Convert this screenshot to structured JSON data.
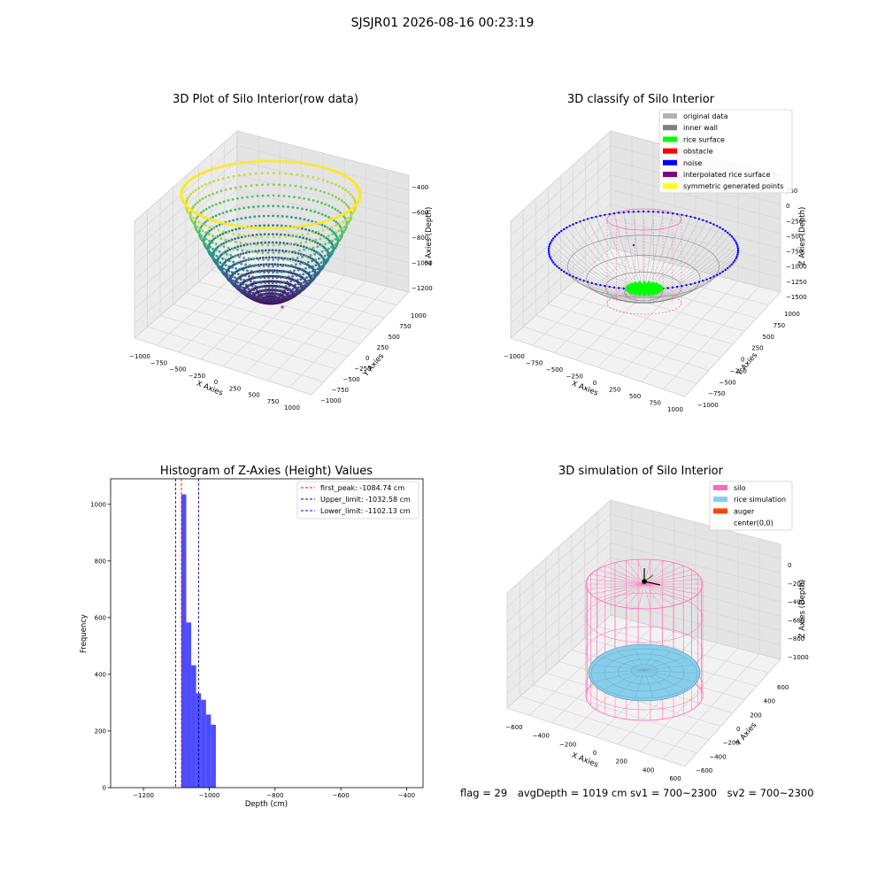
{
  "suptitle": "SJSJR01 2026-08-16 00:23:19",
  "status": {
    "flag": "flag = 29",
    "avg_depth": "avgDepth = 1019 cm",
    "sv1": "sv1 = 700~2300",
    "sv2": "sv2 = 700~2300"
  },
  "colors": {
    "original_data": "#b3b3b3",
    "inner_wall": "#808080",
    "rice_surface": "#00ff00",
    "obstacle": "#ff0000",
    "noise": "#0000ff",
    "interpolated_rice_surface": "#800080",
    "symmetric_generated_points": "#ffff00",
    "silo": "#ff69b4",
    "rice_simulation": "#87ceeb",
    "auger": "#ff4500",
    "histogram_bar": "#4d4dff"
  },
  "chart_data": [
    {
      "type": "scatter",
      "title": "3D Plot of Silo Interior(row data)",
      "xlabel": "X Axies",
      "ylabel": "Y Axies",
      "zlabel": "Z Axies (Depth)",
      "xticks": [
        "−1000",
        "−750",
        "−500",
        "−250",
        "0",
        "250",
        "500",
        "750",
        "1000"
      ],
      "yticks": [
        "−1000",
        "−750",
        "−500",
        "−250",
        "0",
        "250",
        "500",
        "750",
        "1000"
      ],
      "zticks": [
        "−400",
        "−600",
        "−800",
        "−1000",
        "−1200"
      ],
      "colormap": "viridis"
    },
    {
      "type": "scatter",
      "title": "3D classify of Silo Interior",
      "xlabel": "X Axies",
      "ylabel": "Y Axies",
      "zlabel": "Z Axies (Depth)",
      "xticks": [
        "−1000",
        "−750",
        "−500",
        "−250",
        "0",
        "250",
        "500",
        "750",
        "1000"
      ],
      "yticks": [
        "−1000",
        "−750",
        "−500",
        "−250",
        "0",
        "250",
        "500",
        "750",
        "1000"
      ],
      "zticks": [
        "250",
        "0",
        "−250",
        "−500",
        "−750",
        "−1000",
        "−1250",
        "−1500"
      ],
      "legend": [
        "original data",
        "inner wall",
        "rice surface",
        "obstacle",
        "noise",
        "interpolated rice surface",
        "symmetric generated points"
      ],
      "legend_position": "top-right"
    },
    {
      "type": "bar",
      "title": "Histogram of Z-Axies (Height) Values",
      "xlabel": "Depth (cm)",
      "ylabel": "Frequency",
      "xlim": [
        -1300,
        -350
      ],
      "ylim": [
        0,
        1090
      ],
      "xticks": [
        -1200,
        -1000,
        -800,
        -600,
        -400
      ],
      "yticks": [
        0,
        200,
        400,
        600,
        800,
        1000
      ],
      "bins": [
        {
          "x0": -1085,
          "x1": -1070,
          "count": 1035
        },
        {
          "x0": -1070,
          "x1": -1055,
          "count": 583
        },
        {
          "x0": -1055,
          "x1": -1040,
          "count": 432
        },
        {
          "x0": -1040,
          "x1": -1025,
          "count": 333
        },
        {
          "x0": -1025,
          "x1": -1010,
          "count": 310
        },
        {
          "x0": -1010,
          "x1": -995,
          "count": 258
        },
        {
          "x0": -995,
          "x1": -980,
          "count": 222
        }
      ],
      "vlines": [
        {
          "label": "first_peak: -1084.74 cm",
          "value": -1084.74,
          "color": "#ff0000"
        },
        {
          "label": "Upper_limit: -1032.58 cm",
          "value": -1032.58,
          "color": "#000080"
        },
        {
          "label": "Lower_limit: -1102.13 cm",
          "value": -1102.13,
          "color": "#0000ff"
        }
      ],
      "legend_position": "top-right"
    },
    {
      "type": "scatter",
      "title": "3D simulation of Silo Interior",
      "xlabel": "X Axies",
      "ylabel": "Y Axies",
      "zlabel": "Z Axies (Depth)",
      "xticks": [
        "−600",
        "−400",
        "−200",
        "0",
        "200",
        "400",
        "600"
      ],
      "yticks": [
        "−600",
        "−400",
        "−200",
        "0",
        "200",
        "400",
        "600"
      ],
      "zticks": [
        "0",
        "−200",
        "−400",
        "−600",
        "−800",
        "−1000"
      ],
      "legend": [
        "silo",
        "rice simulation",
        "auger",
        "center(0,0)"
      ],
      "legend_position": "top-right"
    }
  ]
}
